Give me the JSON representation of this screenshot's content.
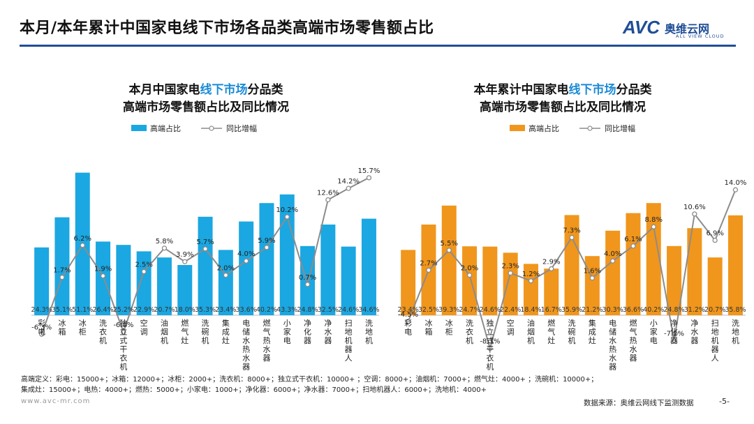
{
  "page_title": "本月/本年累计中国家电线下市场各品类高端市场零售额占比",
  "logo": {
    "mark": "AVC",
    "text": "奥维云网",
    "sub": "ALL VIEW CLOUD"
  },
  "colors": {
    "blue_bar": "#1ba7e1",
    "orange_bar": "#f0961c",
    "line": "#8c8c8c",
    "title_blue": "#1a8bd6",
    "rule": "#1f4e96"
  },
  "chart_data": [
    {
      "type": "bar",
      "title_parts": [
        "本月中国家电",
        "线下市场",
        "分品类"
      ],
      "title_line2": "高端市场零售额占比及同比情况",
      "legend": {
        "bar": "高端占比",
        "line": "同比增幅"
      },
      "categories": [
        "彩电",
        "冰箱",
        "冰柜",
        "洗衣机",
        "独立式干衣机",
        "空调",
        "油烟机",
        "燃气灶",
        "洗碗机",
        "集成灶",
        "电储水热水器",
        "燃气热水器",
        "小家电",
        "净化器",
        "净水器",
        "扫地机器人",
        "洗地机"
      ],
      "bar_labels": [
        "24.3%",
        "35.1%",
        "51.1%",
        "26.4%",
        "25.2%",
        "22.9%",
        "20.7%",
        "18.0%",
        "35.3%",
        "23.4%",
        "33.6%",
        "40.2%",
        "43.3%",
        "24.8%",
        "32.5%",
        "24.6%",
        "34.6%"
      ],
      "bar_values": [
        24.3,
        35.1,
        51.1,
        26.4,
        25.2,
        22.9,
        20.7,
        18.0,
        35.3,
        23.4,
        33.6,
        40.2,
        43.3,
        24.8,
        32.5,
        24.6,
        34.6
      ],
      "line_labels": [
        "-6.3%",
        "1.7%",
        "6.2%",
        "1.9%",
        "-6.0%",
        "2.5%",
        "5.8%",
        "3.9%",
        "5.7%",
        "2.0%",
        "4.0%",
        "5.9%",
        "10.2%",
        "0.7%",
        "12.6%",
        "14.2%",
        "15.7%"
      ],
      "line_values": [
        -6.3,
        1.7,
        6.2,
        1.9,
        -6.0,
        2.5,
        5.8,
        3.9,
        5.7,
        2.0,
        4.0,
        5.9,
        10.2,
        0.7,
        12.6,
        14.2,
        15.7
      ]
    },
    {
      "type": "bar",
      "title_parts": [
        "本年累计中国家电",
        "线下市场",
        "分品类"
      ],
      "title_line2": "高端市场零售额占比及同比情况",
      "legend": {
        "bar": "高端占比",
        "line": "同比增幅"
      },
      "categories": [
        "彩电",
        "冰箱",
        "冰柜",
        "洗衣机",
        "独立式干衣机",
        "空调",
        "油烟机",
        "燃气灶",
        "洗碗机",
        "集成灶",
        "电储水热水器",
        "燃气热水器",
        "小家电",
        "净化器",
        "净水器",
        "扫地机器人",
        "洗地机"
      ],
      "bar_labels": [
        "23.4%",
        "32.5%",
        "39.3%",
        "24.7%",
        "24.6%",
        "22.4%",
        "18.4%",
        "16.7%",
        "35.9%",
        "21.2%",
        "30.3%",
        "36.6%",
        "40.2%",
        "24.8%",
        "31.2%",
        "20.7%",
        "35.8%"
      ],
      "bar_values": [
        23.4,
        32.5,
        39.3,
        24.7,
        24.6,
        22.4,
        18.4,
        16.7,
        35.9,
        21.2,
        30.3,
        36.6,
        40.2,
        24.8,
        31.2,
        20.7,
        35.8
      ],
      "line_labels": [
        "-4.5%",
        "2.7%",
        "5.5%",
        "2.0%",
        "-8.3%",
        "2.3%",
        "1.2%",
        "2.9%",
        "7.3%",
        "1.6%",
        "4.0%",
        "6.1%",
        "8.8%",
        "-7.2%",
        "10.6%",
        "6.9%",
        "14.0%"
      ],
      "line_values": [
        -4.5,
        2.7,
        5.5,
        2.0,
        -8.3,
        2.3,
        1.2,
        2.9,
        7.3,
        1.6,
        4.0,
        6.1,
        8.8,
        -7.2,
        10.6,
        6.9,
        14.0
      ]
    }
  ],
  "footnote_line1": "高端定义：彩电：15000+；冰箱：12000+；冰柜：2000+；洗衣机：8000+；独立式干衣机：10000+ ；空调：8000+；油烟机：7000+；燃气灶：4000+ ；洗碗机：10000+；",
  "footnote_line2": "集成灶：15000+；电热：4000+；燃热：5000+；小家电：1000+；净化器：6000+；净水器：7000+；扫地机器人：6000+；洗地机：4000+",
  "website": "www.avc-mr.com",
  "source": "数据来源：奥维云网线下监测数据",
  "page_number": "-5-"
}
